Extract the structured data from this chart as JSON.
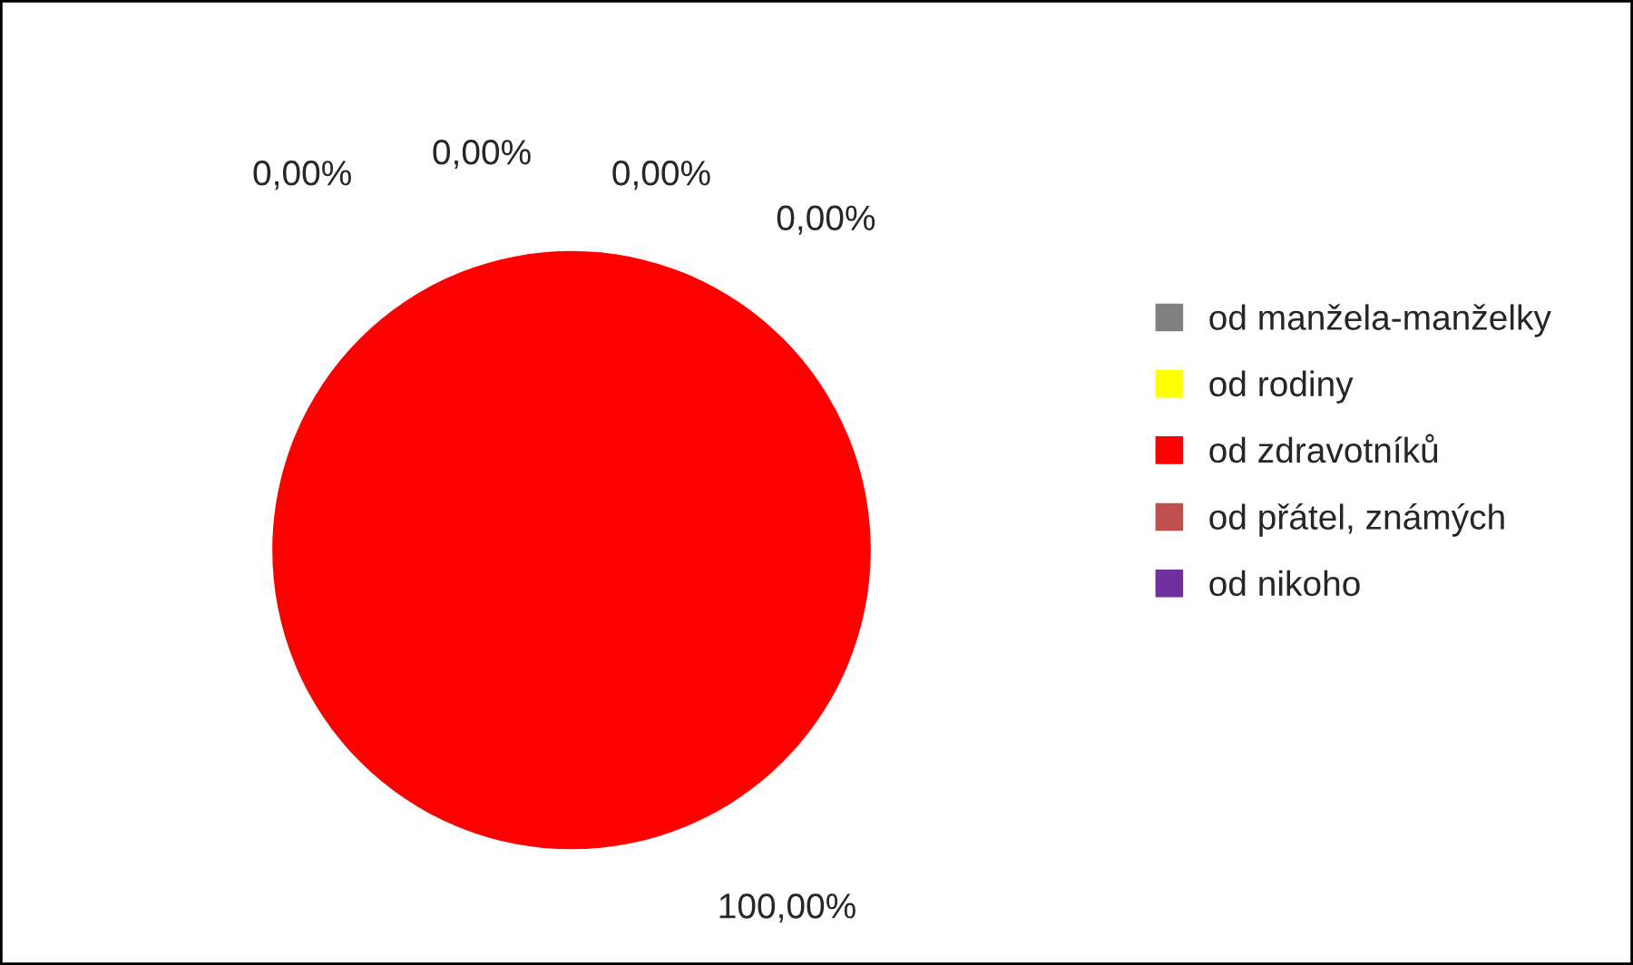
{
  "chart_data": {
    "type": "pie",
    "categories": [
      "od manžela-manželky",
      "od rodiny",
      "od zdravotníků",
      "od přátel, známých",
      "od nikoho"
    ],
    "values": [
      0,
      0,
      100,
      0,
      0
    ],
    "colors": [
      "#808080",
      "#ffff00",
      "#ff0000",
      "#c0504d",
      "#7030a0"
    ],
    "value_labels": [
      "0,00%",
      "0,00%",
      "100,00%",
      "0,00%",
      "0,00%"
    ],
    "legend": "right"
  }
}
